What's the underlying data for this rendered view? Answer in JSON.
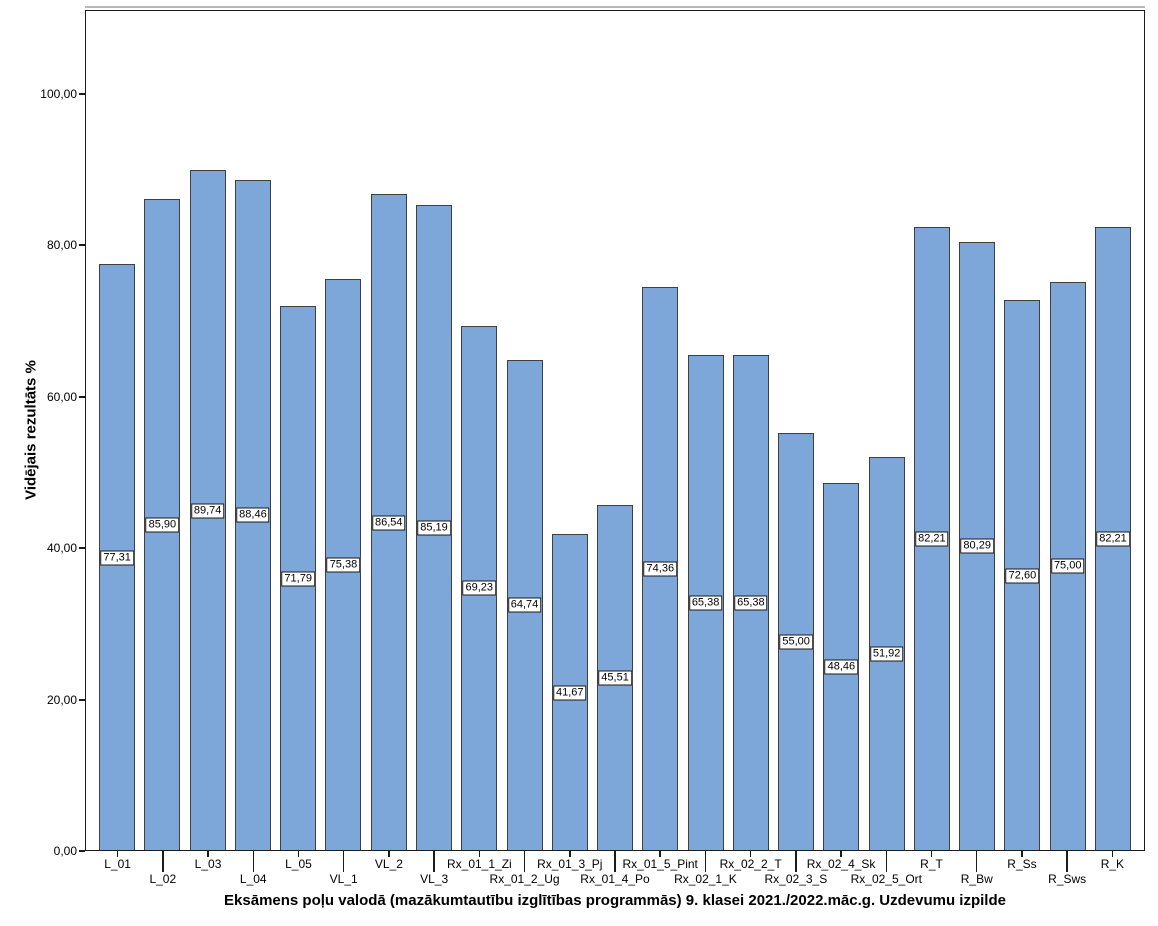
{
  "chart_data": {
    "type": "bar",
    "title": "",
    "xlabel": "Eksāmens poļu valodā (mazākumtautību izglītības programmās) 9. klasei 2021./2022.māc.g. Uzdevumu izpilde",
    "ylabel": "Vidējais rezultāts %",
    "ylim": [
      0,
      111
    ],
    "grid": false,
    "legend_position": "none",
    "yticks": [
      {
        "value": 0,
        "label": "0,00"
      },
      {
        "value": 20,
        "label": "20,00"
      },
      {
        "value": 40,
        "label": "40,00"
      },
      {
        "value": 60,
        "label": "60,00"
      },
      {
        "value": 80,
        "label": "80,00"
      },
      {
        "value": 100,
        "label": "100,00"
      }
    ],
    "categories": [
      "L_01",
      "L_02",
      "L_03",
      "L_04",
      "L_05",
      "VL_1",
      "VL_2",
      "VL_3",
      "Rx_01_1_Zi",
      "Rx_01_2_Ug",
      "Rx_01_3_Pj",
      "Rx_01_4_Po",
      "Rx_01_5_Pint",
      "Rx_02_1_K",
      "Rx_02_2_T",
      "Rx_02_3_S",
      "Rx_02_4_Sk",
      "Rx_02_5_Ort",
      "R_T",
      "R_Bw",
      "R_Ss",
      "R_Sws",
      "R_K"
    ],
    "values": [
      77.31,
      85.9,
      89.74,
      88.46,
      71.79,
      75.38,
      86.54,
      85.19,
      69.23,
      64.74,
      41.67,
      45.51,
      74.36,
      65.38,
      65.38,
      55.0,
      48.46,
      51.92,
      82.21,
      80.29,
      72.6,
      75.0,
      82.21
    ],
    "value_labels": [
      "77,31",
      "85,90",
      "89,74",
      "88,46",
      "71,79",
      "75,38",
      "86,54",
      "85,19",
      "69,23",
      "64,74",
      "41,67",
      "45,51",
      "74,36",
      "65,38",
      "65,38",
      "55,00",
      "48,46",
      "51,92",
      "82,21",
      "80,29",
      "72,60",
      "75,00",
      "82,21"
    ],
    "colors": {
      "bar_fill": "#7DA7D8",
      "bar_border": "#3F3F3F",
      "axis": "#1C1C1C",
      "value_box_bg": "#FFFFFF",
      "value_box_border": "#1A1A1A"
    }
  }
}
